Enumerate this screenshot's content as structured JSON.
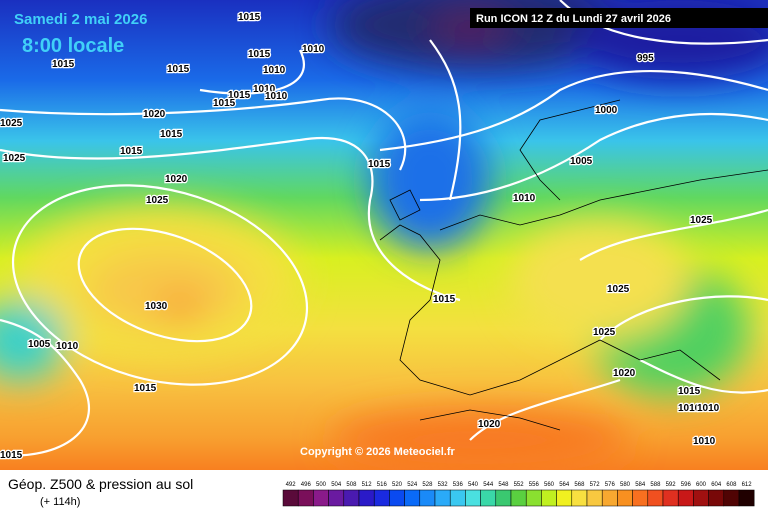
{
  "header": {
    "date": "Samedi 2 mai 2026",
    "time": "8:00 locale",
    "run": "Run ICON 12 Z du Lundi 27 avril 2026"
  },
  "copyright": "Copyright © 2026 Meteociel.fr",
  "footer": {
    "title": "Géop. Z500 & pression au sol",
    "subtitle": "(+ 114h)"
  },
  "scale": {
    "labels": [
      492,
      496,
      500,
      504,
      508,
      512,
      516,
      520,
      524,
      528,
      532,
      536,
      540,
      544,
      548,
      552,
      556,
      560,
      564,
      568,
      572,
      576,
      580,
      584,
      588,
      592,
      596,
      600,
      604,
      608,
      612
    ],
    "colors": [
      "#5a0a3a",
      "#7a0f5a",
      "#8a1a8a",
      "#6a1aa0",
      "#4a1ab0",
      "#2a1ac8",
      "#1a2ae0",
      "#0a4af0",
      "#0a6af8",
      "#1a8af8",
      "#2aaaf8",
      "#3ac8f0",
      "#4ae0e0",
      "#3ad8a8",
      "#3ac870",
      "#5ad040",
      "#8ae030",
      "#c0f020",
      "#f0f020",
      "#f8e040",
      "#f8c840",
      "#f8a830",
      "#f89020",
      "#f87020",
      "#f05020",
      "#e03020",
      "#c81818",
      "#a01010",
      "#780808",
      "#500404",
      "#200000"
    ]
  },
  "isobars": [
    "1015",
    "1015",
    "1015",
    "1015",
    "1010",
    "1010",
    "1015",
    "1010",
    "1010",
    "1015",
    "1020",
    "1015",
    "1015",
    "1025",
    "1025",
    "1020",
    "1025",
    "1015",
    "995",
    "1000",
    "1005",
    "1010",
    "1025",
    "1030",
    "1005",
    "1010",
    "1015",
    "1015",
    "1025",
    "1025",
    "1020",
    "1015",
    "1010",
    "1010",
    "1020",
    "1010",
    "1015"
  ]
}
